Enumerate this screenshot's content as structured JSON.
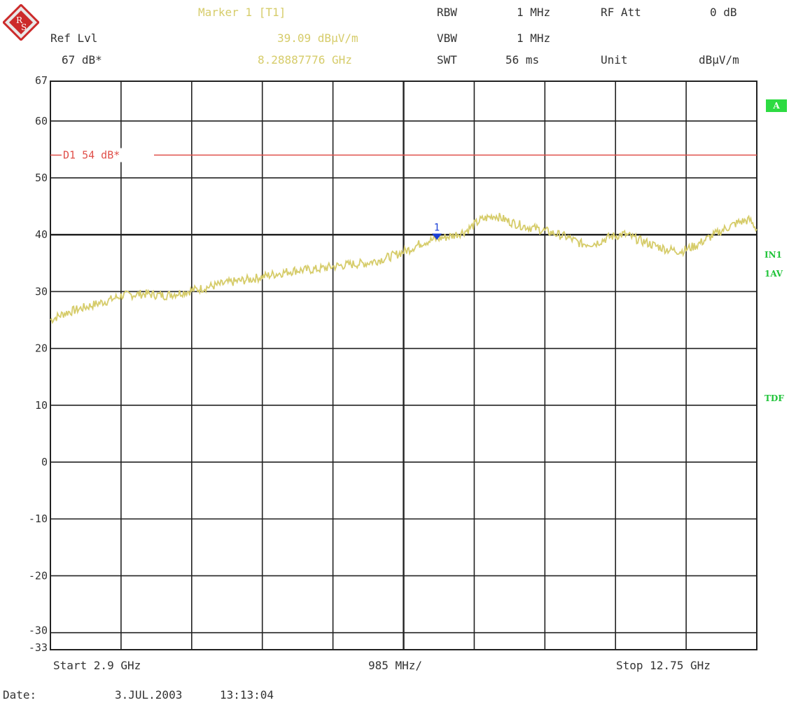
{
  "header": {
    "marker_title": "Marker 1 [T1]",
    "marker_level": "39.09 dBµV/m",
    "marker_freq": "8.28887776 GHz",
    "ref_lvl_label": "Ref Lvl",
    "ref_lvl_value": "67 dB*",
    "rbw_label": "RBW",
    "rbw_value": "1 MHz",
    "vbw_label": "VBW",
    "vbw_value": "1 MHz",
    "swt_label": "SWT",
    "swt_value": "56 ms",
    "rfatt_label": "RF Att",
    "rfatt_value": "0 dB",
    "unit_label": "Unit",
    "unit_value": "dBµV/m"
  },
  "side_labels": {
    "a": "A",
    "in1": "IN1",
    "av": "1AV",
    "tdf": "TDF"
  },
  "footer": {
    "start": "Start 2.9 GHz",
    "span_div": "985 MHz/",
    "stop": "Stop 12.75 GHz",
    "date_label": "Date:",
    "date_value": "3.JUL.2003",
    "time_value": "13:13:04"
  },
  "colors": {
    "trace": "#d6cc6a",
    "limit_line": "#e0504a",
    "marker": "#1a3fd6",
    "grid": "#222222",
    "status_green": "#21c43a"
  },
  "chart_data": {
    "type": "line",
    "x_unit": "GHz",
    "y_unit": "dBµV/m",
    "xlim": [
      2.9,
      12.75
    ],
    "ylim": [
      -33,
      67
    ],
    "y_ticks": [
      67,
      60,
      50,
      40,
      30,
      20,
      10,
      0,
      -10,
      -20,
      -30,
      -33
    ],
    "x_divisions": 10,
    "grid": true,
    "limit_line": {
      "label": "D1 54 dB*",
      "value": 54
    },
    "marker": {
      "label": "1",
      "x": 8.289,
      "y": 39.09
    },
    "series": [
      {
        "points": [
          [
            2.9,
            25.0
          ],
          [
            3.1,
            26.2
          ],
          [
            3.4,
            27.3
          ],
          [
            3.7,
            28.4
          ],
          [
            3.9,
            29.3
          ],
          [
            4.2,
            29.6
          ],
          [
            4.5,
            29.3
          ],
          [
            4.8,
            30.0
          ],
          [
            5.1,
            30.8
          ],
          [
            5.4,
            31.6
          ],
          [
            5.7,
            32.2
          ],
          [
            6.0,
            33.0
          ],
          [
            6.3,
            33.7
          ],
          [
            6.6,
            33.9
          ],
          [
            6.9,
            34.5
          ],
          [
            7.1,
            34.8
          ],
          [
            7.3,
            35.0
          ],
          [
            7.5,
            35.6
          ],
          [
            7.7,
            36.4
          ],
          [
            7.9,
            37.4
          ],
          [
            8.1,
            38.7
          ],
          [
            8.3,
            39.3
          ],
          [
            8.5,
            39.8
          ],
          [
            8.7,
            40.7
          ],
          [
            8.9,
            42.6
          ],
          [
            9.1,
            43.4
          ],
          [
            9.3,
            42.3
          ],
          [
            9.5,
            41.5
          ],
          [
            9.7,
            41.0
          ],
          [
            9.9,
            40.3
          ],
          [
            10.1,
            39.6
          ],
          [
            10.3,
            38.4
          ],
          [
            10.5,
            38.5
          ],
          [
            10.7,
            39.6
          ],
          [
            10.9,
            40.1
          ],
          [
            11.1,
            39.1
          ],
          [
            11.3,
            38.2
          ],
          [
            11.5,
            37.4
          ],
          [
            11.7,
            37.1
          ],
          [
            11.9,
            38.1
          ],
          [
            12.1,
            39.6
          ],
          [
            12.3,
            41.0
          ],
          [
            12.5,
            42.2
          ],
          [
            12.65,
            42.6
          ],
          [
            12.75,
            41.0
          ]
        ]
      }
    ]
  }
}
